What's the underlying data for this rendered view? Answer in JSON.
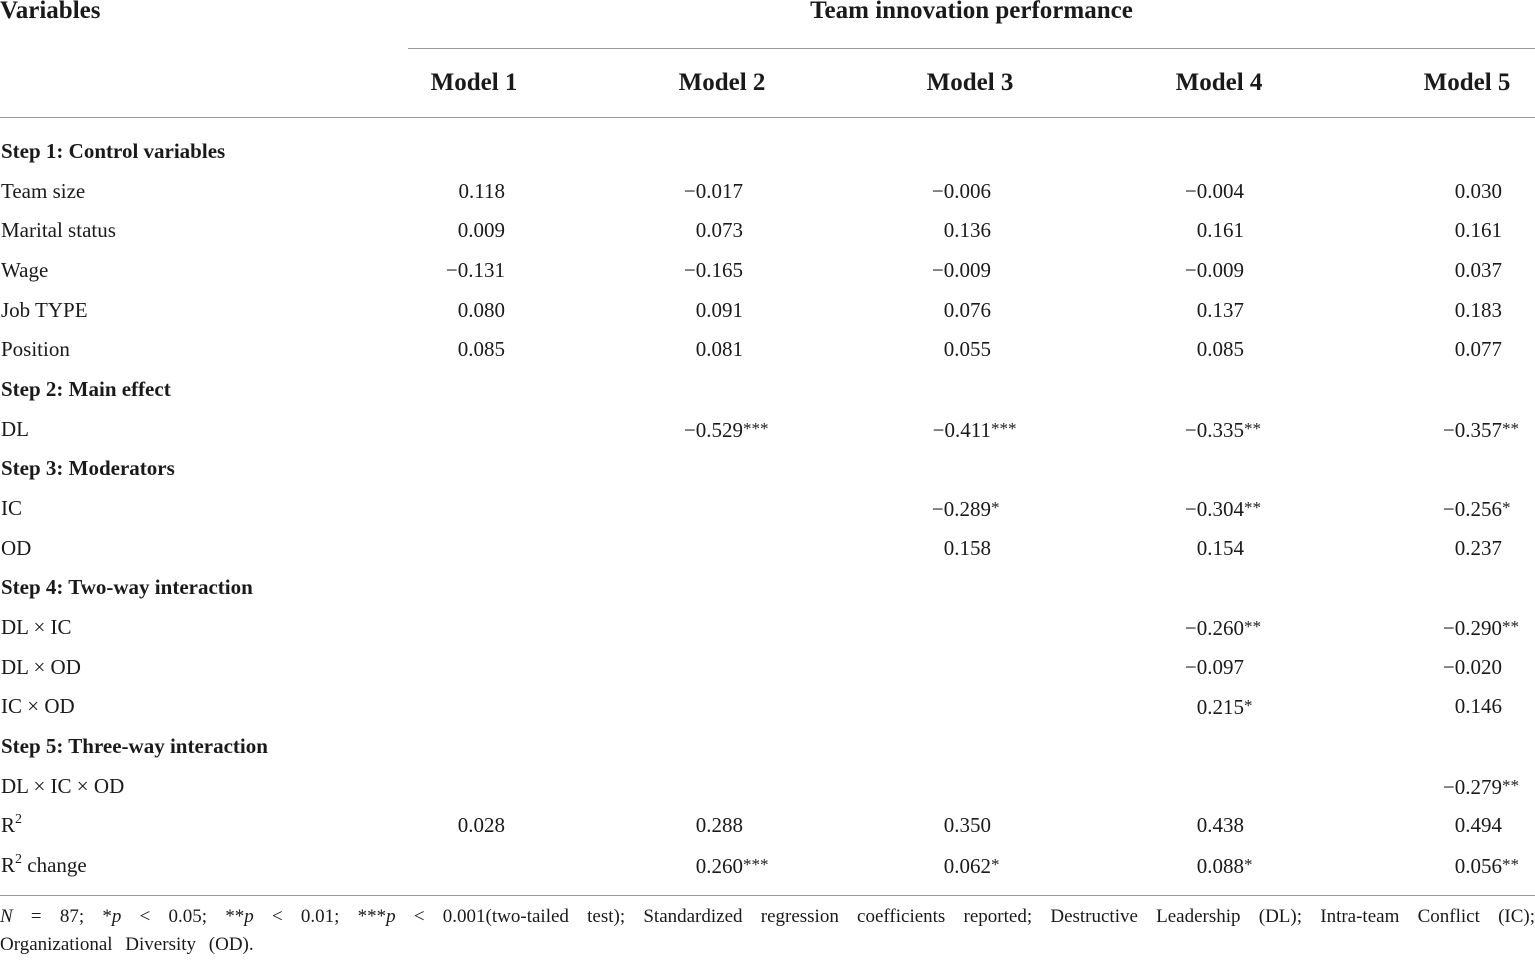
{
  "header": {
    "variables_label": "Variables",
    "span_label": "Team innovation performance",
    "models": [
      "Model 1",
      "Model 2",
      "Model 3",
      "Model 4",
      "Model 5"
    ]
  },
  "rows": [
    {
      "label": "Step 1: Control variables",
      "section": true,
      "cells": [
        "",
        "",
        "",
        "",
        ""
      ]
    },
    {
      "label": "Team size",
      "cells": [
        "0.118",
        "−0.017",
        "−0.006",
        "−0.004",
        "0.030"
      ]
    },
    {
      "label": "Marital status",
      "cells": [
        "0.009",
        "0.073",
        "0.136",
        "0.161",
        "0.161"
      ]
    },
    {
      "label": "Wage",
      "cells": [
        "−0.131",
        "−0.165",
        "−0.009",
        "−0.009",
        "0.037"
      ]
    },
    {
      "label": "Job TYPE",
      "cells": [
        "0.080",
        "0.091",
        "0.076",
        "0.137",
        "0.183"
      ]
    },
    {
      "label": "Position",
      "cells": [
        "0.085",
        "0.081",
        "0.055",
        "0.085",
        "0.077"
      ]
    },
    {
      "label": "Step 2: Main effect",
      "section": true,
      "cells": [
        "",
        "",
        "",
        "",
        ""
      ]
    },
    {
      "label": "DL",
      "cells": [
        "",
        "−0.529***",
        "−0.411***",
        "−0.335**",
        "−0.357**"
      ]
    },
    {
      "label": "Step 3: Moderators",
      "section": true,
      "cells": [
        "",
        "",
        "",
        "",
        ""
      ]
    },
    {
      "label": "IC",
      "cells": [
        "",
        "",
        "−0.289*",
        "−0.304**",
        "−0.256*"
      ]
    },
    {
      "label": "OD",
      "cells": [
        "",
        "",
        "0.158",
        "0.154",
        "0.237"
      ]
    },
    {
      "label": "Step 4: Two-way interaction",
      "section": true,
      "cells": [
        "",
        "",
        "",
        "",
        ""
      ]
    },
    {
      "label": "DL × IC",
      "cells": [
        "",
        "",
        "",
        "−0.260**",
        "−0.290**"
      ]
    },
    {
      "label": "DL × OD",
      "cells": [
        "",
        "",
        "",
        "−0.097",
        "−0.020"
      ]
    },
    {
      "label": "IC × OD",
      "cells": [
        "",
        "",
        "",
        "0.215*",
        "0.146"
      ]
    },
    {
      "label": "Step 5: Three-way interaction",
      "section": true,
      "cells": [
        "",
        "",
        "",
        "",
        ""
      ]
    },
    {
      "label": "DL × IC × OD",
      "cells": [
        "",
        "",
        "",
        "",
        "−0.279**"
      ]
    },
    {
      "label": "R",
      "label_sup": "2",
      "cells": [
        "0.028",
        "0.288",
        "0.350",
        "0.438",
        "0.494"
      ]
    },
    {
      "label": "R",
      "label_sup": "2",
      "label_suffix": " change",
      "cells": [
        "",
        "0.260***",
        "0.062*",
        "0.088*",
        "0.056**"
      ]
    }
  ],
  "footnote": {
    "n_symbol": "N",
    "n_text": " = 87; *",
    "p1": "p",
    "t1": " < 0.05; **",
    "p2": "p",
    "t2": " < 0.01; ***",
    "p3": "p",
    "t3": " < 0.001(two-tailed test); Standardized regression coefficients reported; Destructive Leadership (DL); Intra-team Conflict (IC); Organizational Diversity (OD)."
  }
}
